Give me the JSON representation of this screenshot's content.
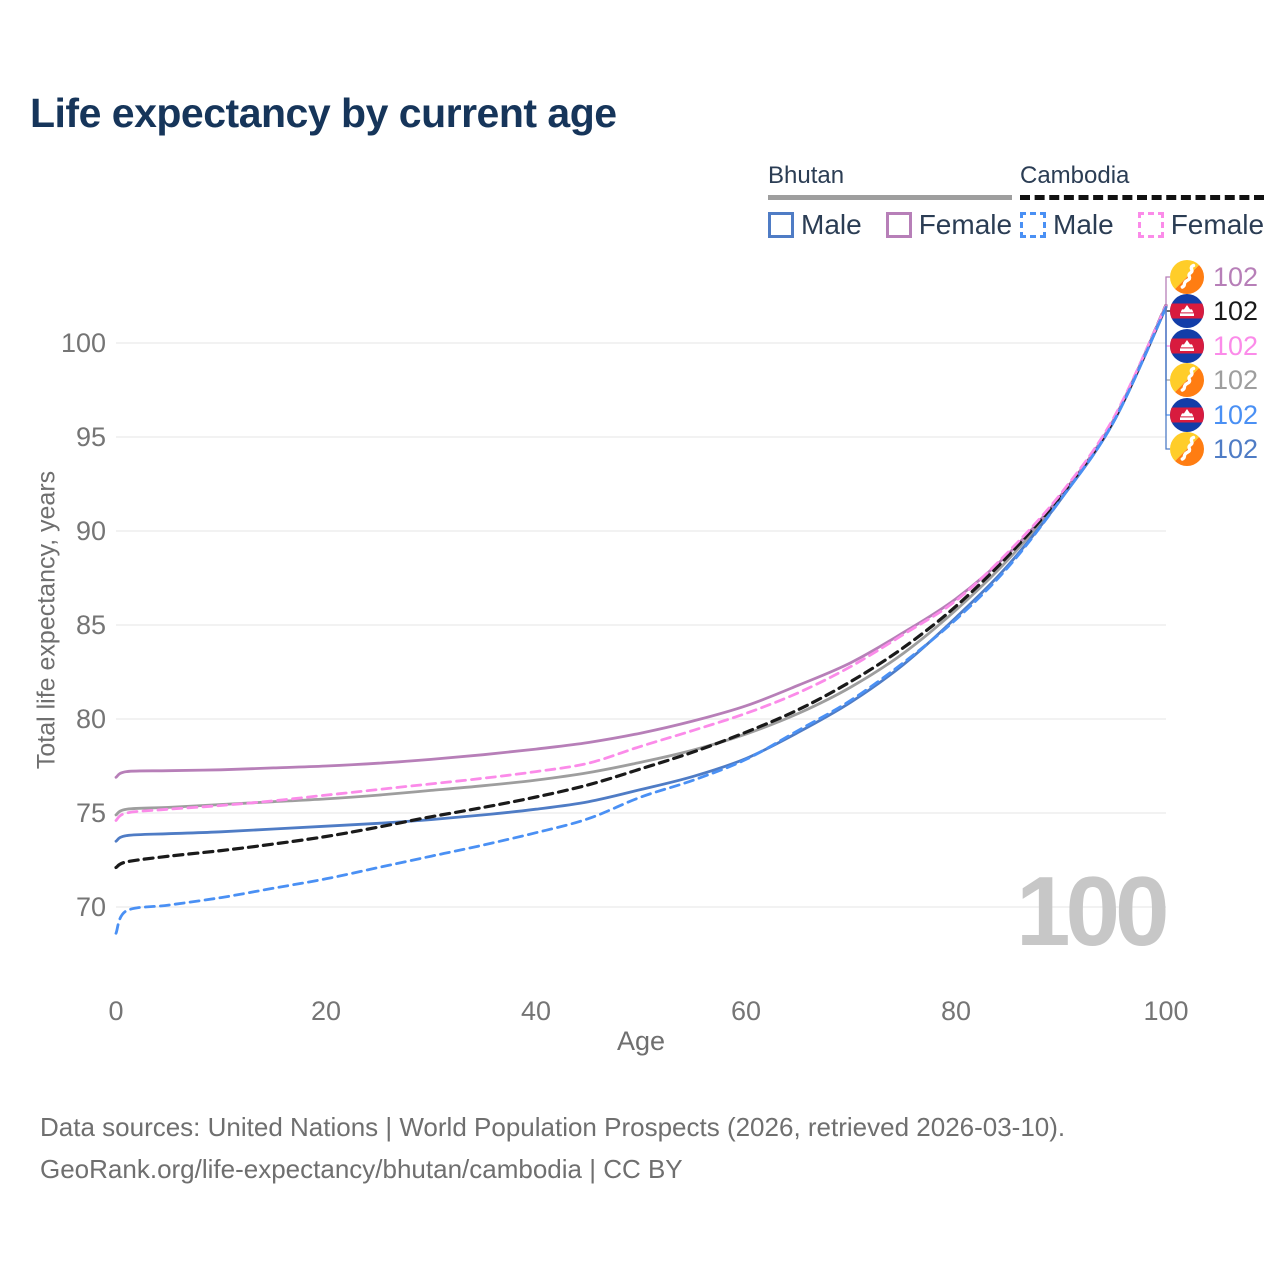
{
  "page": {
    "title": "Life expectancy by current age"
  },
  "legend": {
    "groups": [
      {
        "name": "Bhutan",
        "line_style": "solid",
        "underline_color": "#9e9e9e",
        "items": [
          {
            "label": "Male",
            "color": "#4f7cc5",
            "dashed": false
          },
          {
            "label": "Female",
            "color": "#b77fb8",
            "dashed": false
          }
        ]
      },
      {
        "name": "Cambodia",
        "line_style": "dashed",
        "underline_color": "#111111",
        "items": [
          {
            "label": "Male",
            "color": "#4a90f4",
            "dashed": true
          },
          {
            "label": "Female",
            "color": "#fb8be9",
            "dashed": true
          }
        ]
      }
    ]
  },
  "chart_data": {
    "type": "line",
    "title": "Life expectancy by current age",
    "xlabel": "Age",
    "ylabel": "Total life expectancy, years",
    "xlim": [
      0,
      100
    ],
    "ylim": [
      66,
      103.5
    ],
    "xticks": [
      0,
      20,
      40,
      60,
      80,
      100
    ],
    "yticks": [
      70,
      75,
      80,
      85,
      90,
      95,
      100
    ],
    "grid": "horizontal",
    "grid_color": "#ebebeb",
    "axis_text_color": "#757575",
    "x": [
      0,
      1,
      5,
      10,
      15,
      20,
      25,
      30,
      35,
      40,
      45,
      50,
      55,
      60,
      65,
      70,
      75,
      80,
      85,
      90,
      95,
      100
    ],
    "series": [
      {
        "name": "Bhutan Both sexes",
        "country": "Bhutan",
        "sex": "Both",
        "color": "#9e9e9e",
        "dash": "solid",
        "values": [
          74.9,
          75.2,
          75.3,
          75.45,
          75.6,
          75.75,
          75.95,
          76.2,
          76.45,
          76.75,
          77.15,
          77.7,
          78.35,
          79.2,
          80.3,
          81.7,
          83.5,
          85.8,
          88.5,
          91.8,
          95.8,
          101.9
        ]
      },
      {
        "name": "Bhutan Female",
        "country": "Bhutan",
        "sex": "Female",
        "color": "#b77fb8",
        "dash": "solid",
        "values": [
          76.9,
          77.2,
          77.25,
          77.3,
          77.4,
          77.5,
          77.65,
          77.85,
          78.1,
          78.4,
          78.75,
          79.25,
          79.9,
          80.7,
          81.8,
          83.0,
          84.6,
          86.4,
          88.8,
          91.9,
          95.9,
          102.0
        ]
      },
      {
        "name": "Bhutan Male",
        "country": "Bhutan",
        "sex": "Male",
        "color": "#4f7cc5",
        "dash": "solid",
        "values": [
          73.5,
          73.8,
          73.9,
          74.0,
          74.15,
          74.3,
          74.45,
          74.65,
          74.9,
          75.2,
          75.6,
          76.25,
          76.95,
          77.9,
          79.3,
          80.9,
          82.9,
          85.4,
          88.2,
          91.7,
          95.8,
          101.9
        ]
      },
      {
        "name": "Cambodia Both sexes",
        "country": "Cambodia",
        "sex": "Both",
        "color": "#1a1a1a",
        "dash": "dashed",
        "values": [
          72.1,
          72.4,
          72.7,
          73.0,
          73.35,
          73.75,
          74.25,
          74.8,
          75.3,
          75.85,
          76.5,
          77.35,
          78.25,
          79.3,
          80.5,
          82.0,
          83.8,
          86.0,
          88.7,
          91.9,
          95.9,
          102.0
        ]
      },
      {
        "name": "Cambodia Female",
        "country": "Cambodia",
        "sex": "Female",
        "color": "#fb8be9",
        "dash": "dashed",
        "values": [
          74.6,
          75.0,
          75.2,
          75.4,
          75.65,
          75.95,
          76.25,
          76.55,
          76.85,
          77.2,
          77.65,
          78.55,
          79.4,
          80.3,
          81.4,
          82.8,
          84.5,
          86.3,
          88.9,
          92.0,
          96.0,
          102.0
        ]
      },
      {
        "name": "Cambodia Male",
        "country": "Cambodia",
        "sex": "Male",
        "color": "#4a90f4",
        "dash": "dashed",
        "values": [
          68.6,
          69.8,
          70.1,
          70.5,
          71.0,
          71.5,
          72.1,
          72.7,
          73.3,
          73.95,
          74.7,
          75.85,
          76.75,
          77.85,
          79.4,
          81.0,
          83.0,
          85.3,
          88.1,
          91.7,
          95.8,
          101.9
        ]
      }
    ],
    "end_labels": [
      {
        "flag": "bhutan",
        "series": "Bhutan Female",
        "value": "102",
        "color": "#b77fb8"
      },
      {
        "flag": "cambodia",
        "series": "Cambodia Both sexes",
        "value": "102",
        "color": "#1a1a1a"
      },
      {
        "flag": "cambodia",
        "series": "Cambodia Female",
        "value": "102",
        "color": "#fb8be9"
      },
      {
        "flag": "bhutan",
        "series": "Bhutan Both sexes",
        "value": "102",
        "color": "#9e9e9e"
      },
      {
        "flag": "cambodia",
        "series": "Cambodia Male",
        "value": "102",
        "color": "#4a90f4"
      },
      {
        "flag": "bhutan",
        "series": "Bhutan Male",
        "value": "102",
        "color": "#4f7cc5"
      }
    ]
  },
  "watermark": "100",
  "footer": {
    "line1": "Data sources: United Nations | World Population Prospects (2026, retrieved 2026-03-10).",
    "line2": "GeoRank.org/life-expectancy/bhutan/cambodia | CC BY"
  }
}
